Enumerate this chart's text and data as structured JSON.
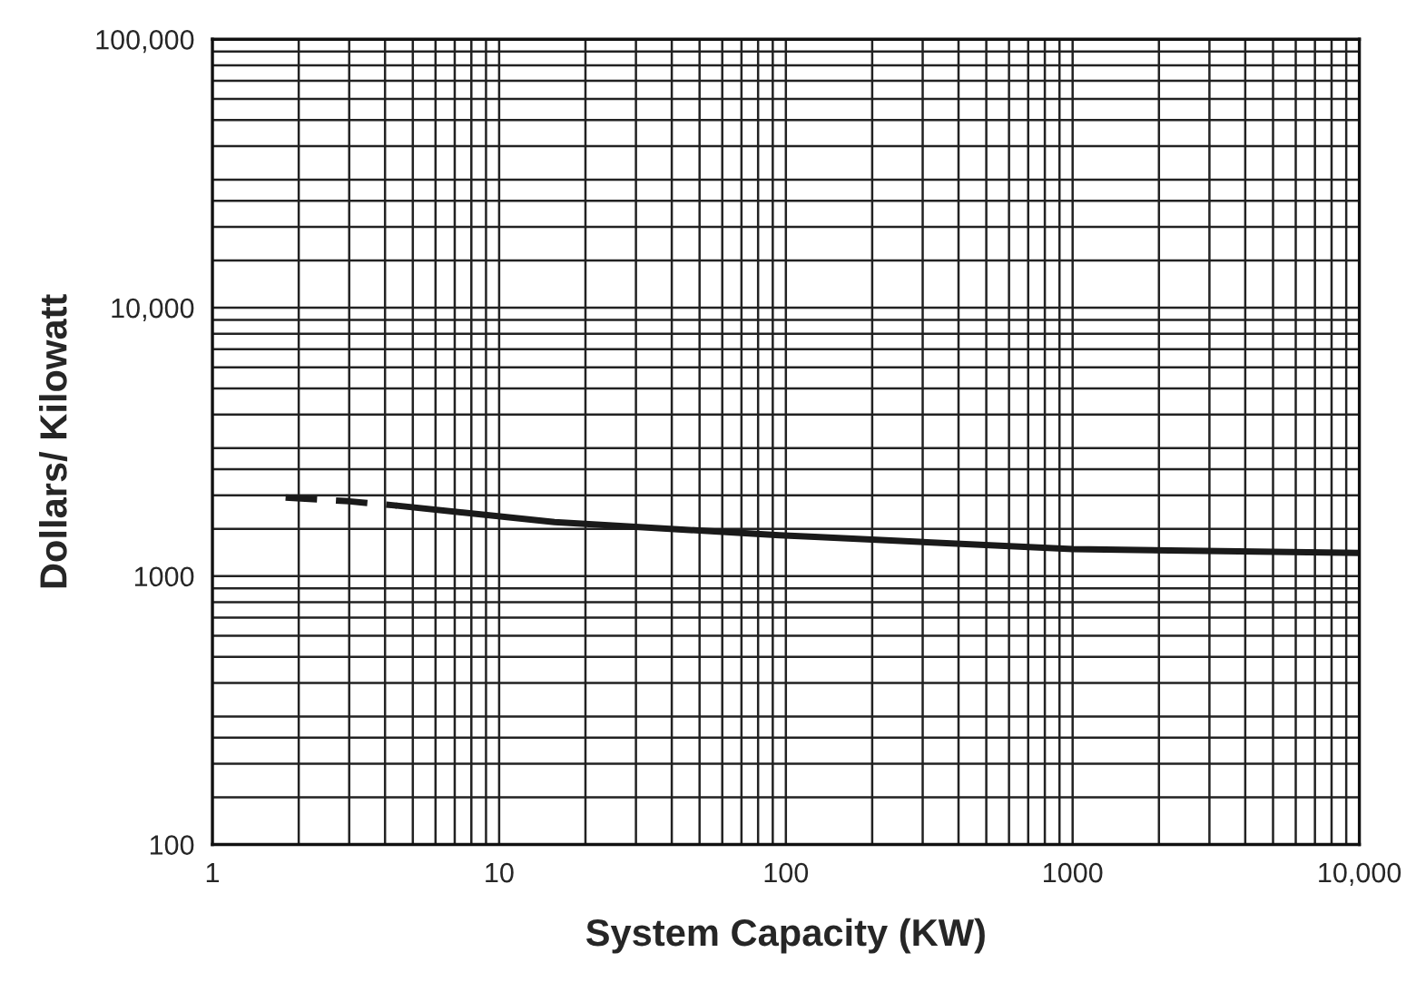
{
  "chart_data": {
    "type": "line",
    "xlabel": "System Capacity (KW)",
    "ylabel": "Dollars/ Kilowatt",
    "log": "xy",
    "grid": true,
    "xlim": [
      1,
      10000
    ],
    "ylim": [
      100,
      100000
    ],
    "xticks": [
      1,
      10,
      100,
      1000,
      {
        "value": 10000,
        "label": "10,000"
      }
    ],
    "yticks": [
      100,
      1000,
      {
        "value": 10000,
        "label": "10,000"
      },
      {
        "value": 100000,
        "label": "100,000"
      }
    ],
    "series": [
      {
        "color": "#1a1a1a",
        "line_style": "dashed",
        "x": [
          1.8,
          3,
          4.4
        ],
        "values": [
          1960,
          1900,
          1830
        ]
      },
      {
        "color": "#1a1a1a",
        "line_style": "solid",
        "x": [
          4.4,
          15.6,
          95,
          126,
          1000,
          10000
        ],
        "values": [
          1830,
          1590,
          1420,
          1400,
          1260,
          1220
        ]
      }
    ]
  }
}
